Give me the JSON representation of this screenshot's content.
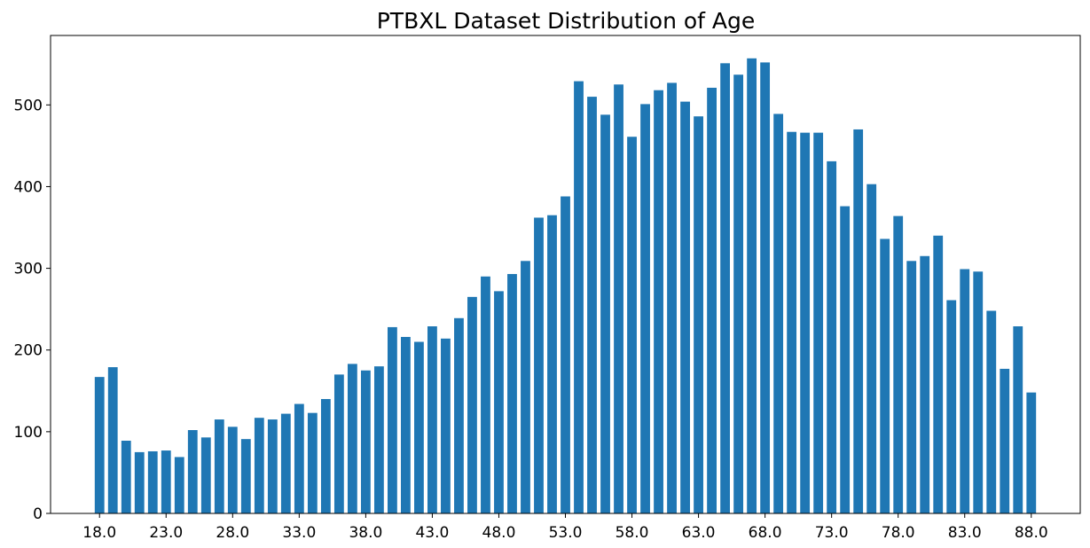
{
  "chart_data": {
    "type": "bar",
    "title": "PTBXL Dataset Distribution of Age",
    "xlabel": "",
    "ylabel": "",
    "x": [
      18,
      19,
      20,
      21,
      22,
      23,
      24,
      25,
      26,
      27,
      28,
      29,
      30,
      31,
      32,
      33,
      34,
      35,
      36,
      37,
      38,
      39,
      40,
      41,
      42,
      43,
      44,
      45,
      46,
      47,
      48,
      49,
      50,
      51,
      52,
      53,
      54,
      55,
      56,
      57,
      58,
      59,
      60,
      61,
      62,
      63,
      64,
      65,
      66,
      67,
      68,
      69,
      70,
      71,
      72,
      73,
      74,
      75,
      76,
      77,
      78,
      79,
      80,
      81,
      82,
      83,
      84,
      85,
      86,
      87,
      88
    ],
    "values": [
      167,
      179,
      89,
      75,
      76,
      77,
      69,
      102,
      93,
      115,
      106,
      91,
      117,
      115,
      122,
      134,
      123,
      140,
      170,
      183,
      175,
      180,
      228,
      216,
      210,
      229,
      214,
      239,
      265,
      290,
      272,
      293,
      309,
      362,
      365,
      388,
      529,
      510,
      488,
      525,
      461,
      501,
      518,
      527,
      504,
      486,
      521,
      551,
      537,
      557,
      552,
      489,
      467,
      466,
      466,
      431,
      376,
      470,
      403,
      336,
      364,
      309,
      315,
      340,
      261,
      299,
      296,
      248,
      177,
      229,
      148
    ],
    "xticks": [
      "18.0",
      "23.0",
      "28.0",
      "33.0",
      "38.0",
      "43.0",
      "48.0",
      "53.0",
      "58.0",
      "63.0",
      "68.0",
      "73.0",
      "78.0",
      "83.0",
      "88.0"
    ],
    "yticks": [
      "0",
      "100",
      "200",
      "300",
      "400",
      "500"
    ],
    "ylim": [
      0,
      585
    ],
    "grid": false,
    "bar_color": "#1f77b4"
  }
}
